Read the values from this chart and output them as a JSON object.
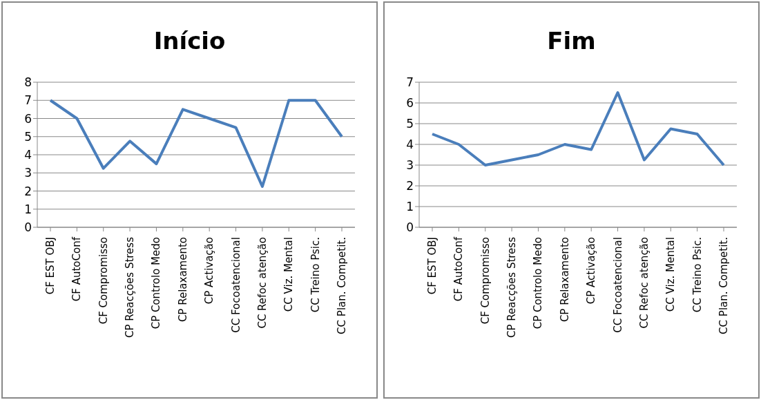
{
  "chart_data": [
    {
      "type": "line",
      "title": "Início",
      "categories": [
        "CF EST OBJ",
        "CF AutoConf",
        "CF Compromisso",
        "CP Reacções Stress",
        "CP Controlo Medo",
        "CP Relaxamento",
        "CP Activação",
        "CC Focoatencional",
        "CC Refoc atenção",
        "CC Viz. Mental",
        "CC Treino Psic.",
        "CC Plan. Competit."
      ],
      "series": [
        {
          "color": "#4a7ebb",
          "values": [
            7,
            6,
            3.25,
            4.75,
            3.5,
            6.5,
            6,
            5.5,
            2.25,
            7,
            7,
            5
          ]
        }
      ],
      "ylim": [
        0,
        8
      ],
      "yticks": [
        0,
        1,
        2,
        3,
        4,
        5,
        6,
        7,
        8
      ],
      "grid": "y",
      "legend": false,
      "marker": "none",
      "line_style": "solid"
    },
    {
      "type": "line",
      "title": "Fim",
      "categories": [
        "CF EST OBJ",
        "CF AutoConf",
        "CF Compromisso",
        "CP Reacções Stress",
        "CP Controlo Medo",
        "CP Relaxamento",
        "CP Activação",
        "CC Focoatencional",
        "CC Refoc atenção",
        "CC Viz. Mental",
        "CC Treino Psic.",
        "CC Plan. Competit."
      ],
      "series": [
        {
          "color": "#4a7ebb",
          "values": [
            4.5,
            4,
            3,
            3.25,
            3.5,
            4,
            3.75,
            6.5,
            3.25,
            4.75,
            4.5,
            3
          ]
        }
      ],
      "ylim": [
        0,
        7
      ],
      "yticks": [
        0,
        1,
        2,
        3,
        4,
        5,
        6,
        7
      ],
      "grid": "y",
      "legend": false,
      "marker": "none",
      "line_style": "solid"
    }
  ]
}
